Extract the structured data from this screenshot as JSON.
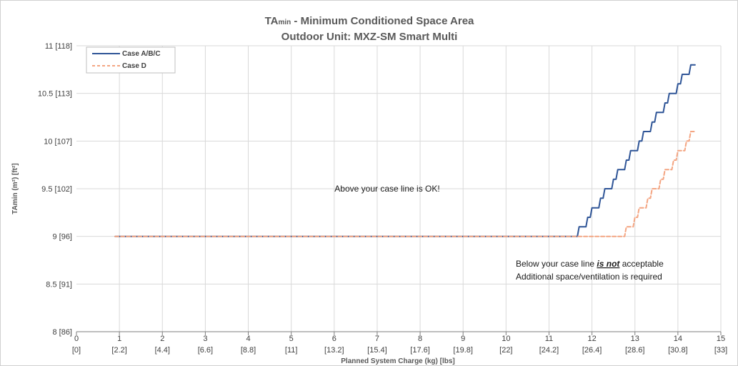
{
  "chart_data": {
    "type": "line",
    "title": {
      "line1_prefix": "TA",
      "line1_sub": "min",
      "line1_suffix": " - Minimum Conditioned Space Area",
      "line2": "Outdoor Unit: MXZ-SM Smart Multi"
    },
    "xlabel": "Planned System Charge (kg) [lbs]",
    "ylabel": "TAmin (m²) [ft²]",
    "xlim": [
      0,
      15
    ],
    "ylim": [
      8,
      11
    ],
    "grid": true,
    "legend_position": "top-left",
    "x_ticks": [
      {
        "value": 0,
        "label": "0",
        "label2": "[0]"
      },
      {
        "value": 1,
        "label": "1",
        "label2": "[2.2]"
      },
      {
        "value": 2,
        "label": "2",
        "label2": "[4.4]"
      },
      {
        "value": 3,
        "label": "3",
        "label2": "[6.6]"
      },
      {
        "value": 4,
        "label": "4",
        "label2": "[8.8]"
      },
      {
        "value": 5,
        "label": "5",
        "label2": "[11]"
      },
      {
        "value": 6,
        "label": "6",
        "label2": "[13.2]"
      },
      {
        "value": 7,
        "label": "7",
        "label2": "[15.4]"
      },
      {
        "value": 8,
        "label": "8",
        "label2": "[17.6]"
      },
      {
        "value": 9,
        "label": "9",
        "label2": "[19.8]"
      },
      {
        "value": 10,
        "label": "10",
        "label2": "[22]"
      },
      {
        "value": 11,
        "label": "11",
        "label2": "[24.2]"
      },
      {
        "value": 12,
        "label": "12",
        "label2": "[26.4]"
      },
      {
        "value": 13,
        "label": "13",
        "label2": "[28.6]"
      },
      {
        "value": 14,
        "label": "14",
        "label2": "[30.8]"
      },
      {
        "value": 15,
        "label": "15",
        "label2": "[33]"
      }
    ],
    "y_ticks": [
      {
        "value": 8,
        "label": "8 [86]"
      },
      {
        "value": 8.5,
        "label": "8.5 [91]"
      },
      {
        "value": 9,
        "label": "9 [96]"
      },
      {
        "value": 9.5,
        "label": "9.5 [102]"
      },
      {
        "value": 10,
        "label": "10 [107]"
      },
      {
        "value": 10.5,
        "label": "10.5 [113]"
      },
      {
        "value": 11,
        "label": "11 [118]"
      }
    ],
    "series": [
      {
        "name": "Case A/B/C",
        "color": "#2f5597",
        "dash": "solid",
        "x": [
          0.9,
          11.6,
          11.7,
          11.8,
          11.9,
          12.0,
          12.1,
          12.2,
          12.3,
          12.4,
          12.5,
          12.6,
          12.7,
          12.8,
          12.9,
          13.0,
          13.1,
          13.2,
          13.3,
          13.4,
          13.5,
          13.6,
          13.7,
          13.8,
          13.9,
          14.0,
          14.1,
          14.2,
          14.3,
          14.4
        ],
        "y": [
          9.0,
          9.0,
          9.1,
          9.1,
          9.2,
          9.3,
          9.3,
          9.4,
          9.5,
          9.5,
          9.6,
          9.7,
          9.7,
          9.8,
          9.9,
          9.9,
          10.0,
          10.1,
          10.1,
          10.2,
          10.3,
          10.3,
          10.4,
          10.5,
          10.5,
          10.6,
          10.7,
          10.7,
          10.8,
          10.8
        ]
      },
      {
        "name": "Case D",
        "color": "#f4a582",
        "dash": "dashed",
        "x": [
          0.9,
          12.6,
          12.7,
          12.8,
          12.9,
          13.0,
          13.1,
          13.2,
          13.3,
          13.4,
          13.5,
          13.6,
          13.7,
          13.8,
          13.9,
          14.0,
          14.1,
          14.2,
          14.3,
          14.4
        ],
        "y": [
          9.0,
          9.0,
          9.0,
          9.1,
          9.1,
          9.2,
          9.3,
          9.3,
          9.4,
          9.5,
          9.5,
          9.6,
          9.7,
          9.7,
          9.8,
          9.9,
          9.9,
          10.0,
          10.1,
          10.1
        ]
      }
    ],
    "annotations": {
      "above": "Above your case line is OK!",
      "below_prefix": "Below your case line ",
      "below_emphasis": "is not",
      "below_suffix": " acceptable",
      "below_line2": "Additional space/ventilation is required"
    }
  }
}
